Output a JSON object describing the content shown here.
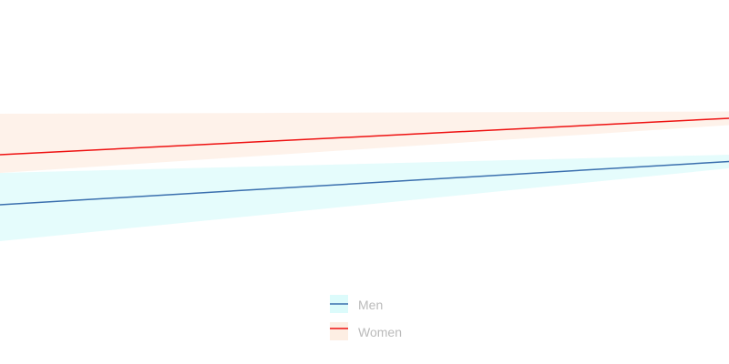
{
  "chart_data": {
    "type": "line",
    "title": "",
    "xlabel": "",
    "ylabel": "",
    "grid": false,
    "legend_position": "bottom-center",
    "series": [
      {
        "name": "Men",
        "color": "#3a6fae",
        "band_color": "#dcfbfb",
        "x": [
          0,
          1
        ],
        "values": [
          0.35,
          0.445
        ],
        "lower": [
          0.27,
          0.43
        ],
        "upper": [
          0.42,
          0.46
        ]
      },
      {
        "name": "Women",
        "color": "#ee1111",
        "band_color": "#fdeee3",
        "x": [
          0,
          1
        ],
        "values": [
          0.46,
          0.54
        ],
        "lower": [
          0.42,
          0.525
        ],
        "upper": [
          0.55,
          0.555
        ]
      }
    ],
    "legend_text_color": "#bbbbbb"
  }
}
